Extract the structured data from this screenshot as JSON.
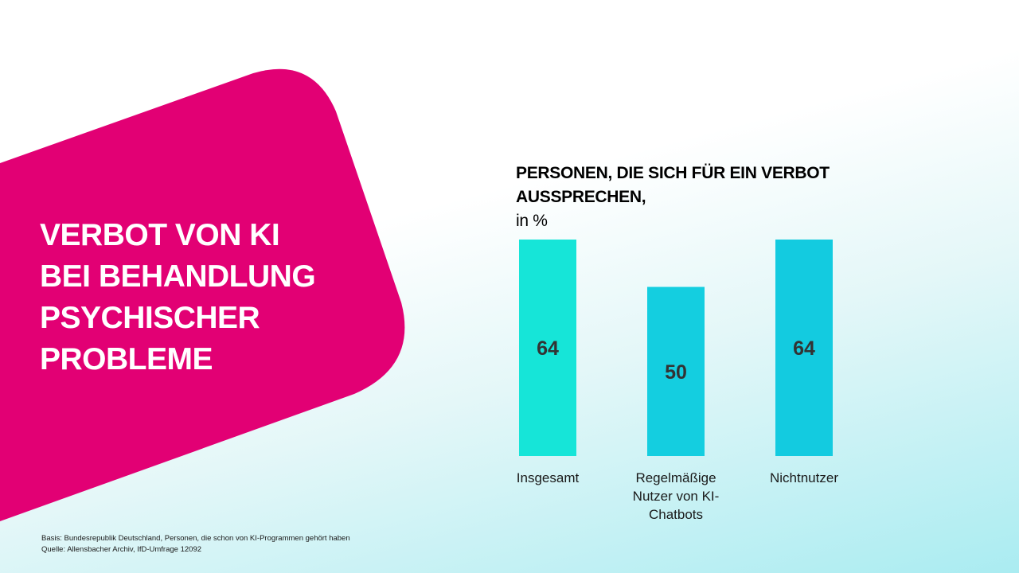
{
  "slide": {
    "title_lines": [
      "VERBOT VON KI",
      "BEI BEHANDLUNG",
      "PSYCHISCHER",
      "PROBLEME"
    ],
    "basis": "Basis: Bundesrepublik Deutschland, Personen, die schon von KI-Programmen gehört haben",
    "source": "Quelle: Allensbacher Archiv, IfD-Umfrage 12092",
    "colors": {
      "accent_magenta": "#e20074",
      "bar_insgesamt": "#16e5d8",
      "bar_regular": "#14cee0",
      "bar_nichtnutzer": "#13cbe0",
      "value_text": "#333333"
    }
  },
  "chart_data": {
    "type": "bar",
    "title_lines": [
      "PERSONEN, DIE SICH FÜR EIN VERBOT",
      "AUSSPRECHEN,"
    ],
    "title_unit": "in %",
    "categories": [
      "Insgesamt",
      "Regelmäßige Nutzer von KI-Chatbots",
      "Nichtnutzer"
    ],
    "category_label_lines": [
      [
        "Insgesamt"
      ],
      [
        "Regelmäßige",
        "Nutzer von KI-",
        "Chatbots"
      ],
      [
        "Nichtnutzer"
      ]
    ],
    "values": [
      64,
      50,
      64
    ],
    "value_labels": [
      "64",
      "50",
      "64"
    ],
    "ylim": [
      0,
      64
    ],
    "grid": false,
    "legend": "none"
  }
}
